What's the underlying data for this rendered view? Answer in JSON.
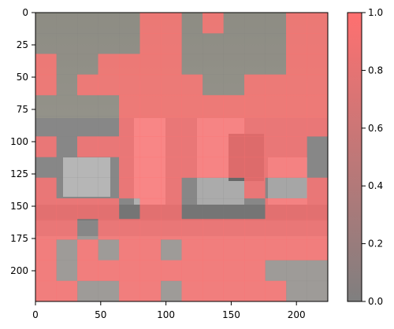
{
  "chart_data": {
    "type": "heatmap",
    "description": "224x224 panoramic interior photo overlaid with a 14x14 grid of patch values; value 1 shown red, value 0 shown gray",
    "grid_rows": 14,
    "grid_cols": 14,
    "patch_size": 16,
    "xlim": [
      0,
      224
    ],
    "ylim": [
      224,
      0
    ],
    "x_ticks": [
      "0",
      "50",
      "100",
      "150",
      "200"
    ],
    "y_ticks": [
      "0",
      "25",
      "50",
      "75",
      "100",
      "125",
      "150",
      "175",
      "200"
    ],
    "colorbar": {
      "min": 0.0,
      "max": 1.0,
      "ticks": [
        "0.0",
        "0.2",
        "0.4",
        "0.6",
        "0.8",
        "1.0"
      ],
      "low_color": "#7f7f7f",
      "high_color": "#ff7070"
    },
    "values": [
      [
        0,
        0,
        0,
        0,
        0,
        1,
        1,
        0,
        1,
        0,
        0,
        0,
        1,
        1
      ],
      [
        0,
        0,
        0,
        0,
        0,
        1,
        1,
        0,
        0,
        0,
        0,
        0,
        1,
        1
      ],
      [
        1,
        0,
        0,
        1,
        1,
        1,
        1,
        0,
        0,
        0,
        0,
        0,
        1,
        1
      ],
      [
        1,
        0,
        1,
        1,
        1,
        1,
        1,
        1,
        0,
        0,
        1,
        1,
        1,
        1
      ],
      [
        0,
        0,
        0,
        0,
        1,
        1,
        1,
        1,
        1,
        1,
        1,
        1,
        1,
        1
      ],
      [
        0,
        0,
        0,
        0,
        1,
        1,
        1,
        1,
        1,
        1,
        1,
        1,
        1,
        1
      ],
      [
        1,
        0,
        1,
        1,
        1,
        1,
        1,
        1,
        1,
        1,
        1,
        1,
        1,
        0
      ],
      [
        0,
        0,
        0,
        0,
        1,
        1,
        1,
        1,
        1,
        1,
        1,
        1,
        1,
        0
      ],
      [
        1,
        0,
        0,
        0,
        1,
        1,
        1,
        0,
        0,
        0,
        1,
        0,
        0,
        1
      ],
      [
        1,
        1,
        1,
        1,
        0,
        1,
        1,
        0,
        0,
        0,
        0,
        1,
        1,
        1
      ],
      [
        1,
        1,
        0,
        1,
        1,
        1,
        1,
        1,
        1,
        1,
        1,
        1,
        1,
        1
      ],
      [
        1,
        0,
        1,
        0,
        1,
        1,
        0,
        1,
        1,
        1,
        1,
        1,
        1,
        1
      ],
      [
        1,
        0,
        1,
        1,
        1,
        1,
        1,
        1,
        1,
        1,
        1,
        0,
        0,
        0
      ],
      [
        1,
        1,
        0,
        0,
        1,
        1,
        0,
        1,
        1,
        1,
        1,
        1,
        0,
        0
      ]
    ]
  }
}
